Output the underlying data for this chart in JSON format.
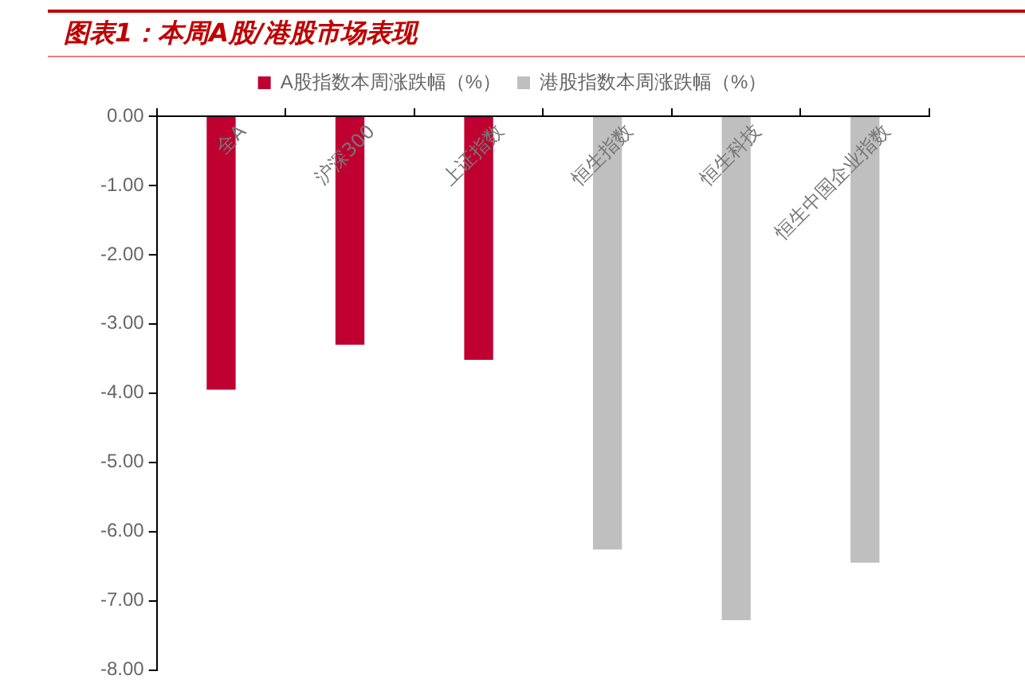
{
  "chart_data": {
    "type": "bar",
    "title": "图表1：本周A股/港股市场表现",
    "categories": [
      "全A",
      "沪深300",
      "上证指数",
      "恒生指数",
      "恒生科技",
      "恒生中国企业指数"
    ],
    "series": [
      {
        "name": "A股指数本周涨跌幅（%）",
        "color": "#c00030",
        "values": [
          -3.95,
          -3.3,
          -3.52,
          null,
          null,
          null
        ]
      },
      {
        "name": "港股指数本周涨跌幅（%）",
        "color": "#bfbfbf",
        "values": [
          null,
          null,
          null,
          -6.26,
          -7.28,
          -6.45
        ]
      }
    ],
    "ylim": [
      -8,
      0
    ],
    "yticks": [
      {
        "value": 0,
        "label": "0.00"
      },
      {
        "value": -1,
        "label": "-1.00"
      },
      {
        "value": -2,
        "label": "-2.00"
      },
      {
        "value": -3,
        "label": "-3.00"
      },
      {
        "value": -4,
        "label": "-4.00"
      },
      {
        "value": -5,
        "label": "-5.00"
      },
      {
        "value": -6,
        "label": "-6.00"
      },
      {
        "value": -7,
        "label": "-7.00"
      },
      {
        "value": -8,
        "label": "-8.00"
      }
    ],
    "grid": false,
    "legend": "top"
  }
}
